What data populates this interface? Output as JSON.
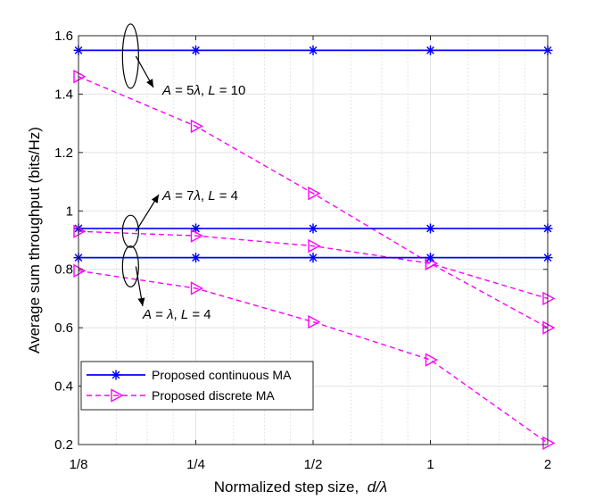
{
  "chart_data": {
    "type": "line",
    "title": "",
    "xlabel": "Normalized step size,",
    "xlabel_math": "d/λ",
    "ylabel": "Average sum throughput (bits/Hz)",
    "x_scale": "log2",
    "x": [
      0.125,
      0.25,
      0.5,
      1,
      2
    ],
    "x_tick_labels": [
      "1/8",
      "1/4",
      "1/2",
      "1",
      "2"
    ],
    "y_ticks": [
      0.2,
      0.4,
      0.6,
      0.8,
      1,
      1.2,
      1.4,
      1.6
    ],
    "y_tick_labels": [
      "0.2",
      "0.4",
      "0.6",
      "0.8",
      "1",
      "1.2",
      "1.4",
      "1.6"
    ],
    "ylim": [
      0.2,
      1.6
    ],
    "grid": true,
    "legend_position": "bottom-left",
    "series": [
      {
        "name": "Proposed continuous MA",
        "group": "A = 5λ, L = 10",
        "values": [
          1.55,
          1.55,
          1.55,
          1.55,
          1.55
        ],
        "color": "#0000ff",
        "dash": "solid",
        "marker": "asterisk",
        "in_legend": true
      },
      {
        "name": "Proposed discrete MA",
        "group": "A = 5λ, L = 10",
        "values": [
          1.46,
          1.29,
          1.06,
          0.82,
          0.6
        ],
        "color": "#ff00ff",
        "dash": "dashed",
        "marker": "triangle-right",
        "in_legend": true
      },
      {
        "name": "Proposed continuous MA",
        "group": "A = 7λ, L = 4",
        "values": [
          0.94,
          0.94,
          0.94,
          0.94,
          0.94
        ],
        "color": "#0000ff",
        "dash": "solid",
        "marker": "asterisk",
        "in_legend": false
      },
      {
        "name": "Proposed discrete MA",
        "group": "A = 7λ, L = 4",
        "values": [
          0.93,
          0.915,
          0.88,
          0.82,
          0.7
        ],
        "color": "#ff00ff",
        "dash": "dashed",
        "marker": "triangle-right",
        "in_legend": false
      },
      {
        "name": "Proposed continuous MA",
        "group": "A = λ, L = 4",
        "values": [
          0.84,
          0.84,
          0.84,
          0.84,
          0.84
        ],
        "color": "#0000ff",
        "dash": "solid",
        "marker": "asterisk",
        "in_legend": false
      },
      {
        "name": "Proposed discrete MA",
        "group": "A = λ, L = 4",
        "values": [
          0.795,
          0.735,
          0.62,
          0.49,
          0.205
        ],
        "color": "#ff00ff",
        "dash": "dashed",
        "marker": "triangle-right",
        "in_legend": false
      }
    ],
    "annotations": [
      {
        "text": "A = 5λ, L = 10",
        "x": 0.17,
        "y_min": 1.42,
        "y_max": 1.64
      },
      {
        "text": "A = 7λ, L = 4",
        "x": 0.17,
        "y_min": 0.875,
        "y_max": 0.985
      },
      {
        "text": "A = λ, L = 4",
        "x": 0.17,
        "y_min": 0.74,
        "y_max": 0.88
      }
    ],
    "annotation_labels": {
      "a1": {
        "a": "A",
        "eq1": " = 5",
        "lam": "λ",
        "sep": ", ",
        "l": "L",
        "eq2": " = 10"
      },
      "a2": {
        "a": "A",
        "eq1": " = 7",
        "lam": "λ",
        "sep": ", ",
        "l": "L",
        "eq2": " = 4"
      },
      "a3": {
        "a": "A",
        "eq1": " = ",
        "lam": "λ",
        "sep": ", ",
        "l": "L",
        "eq2": " = 4"
      }
    },
    "legend": [
      {
        "label": "Proposed continuous MA",
        "color": "#0000ff",
        "dash": "solid",
        "marker": "asterisk"
      },
      {
        "label": "Proposed discrete MA",
        "color": "#ff00ff",
        "dash": "dashed",
        "marker": "triangle-right"
      }
    ]
  }
}
